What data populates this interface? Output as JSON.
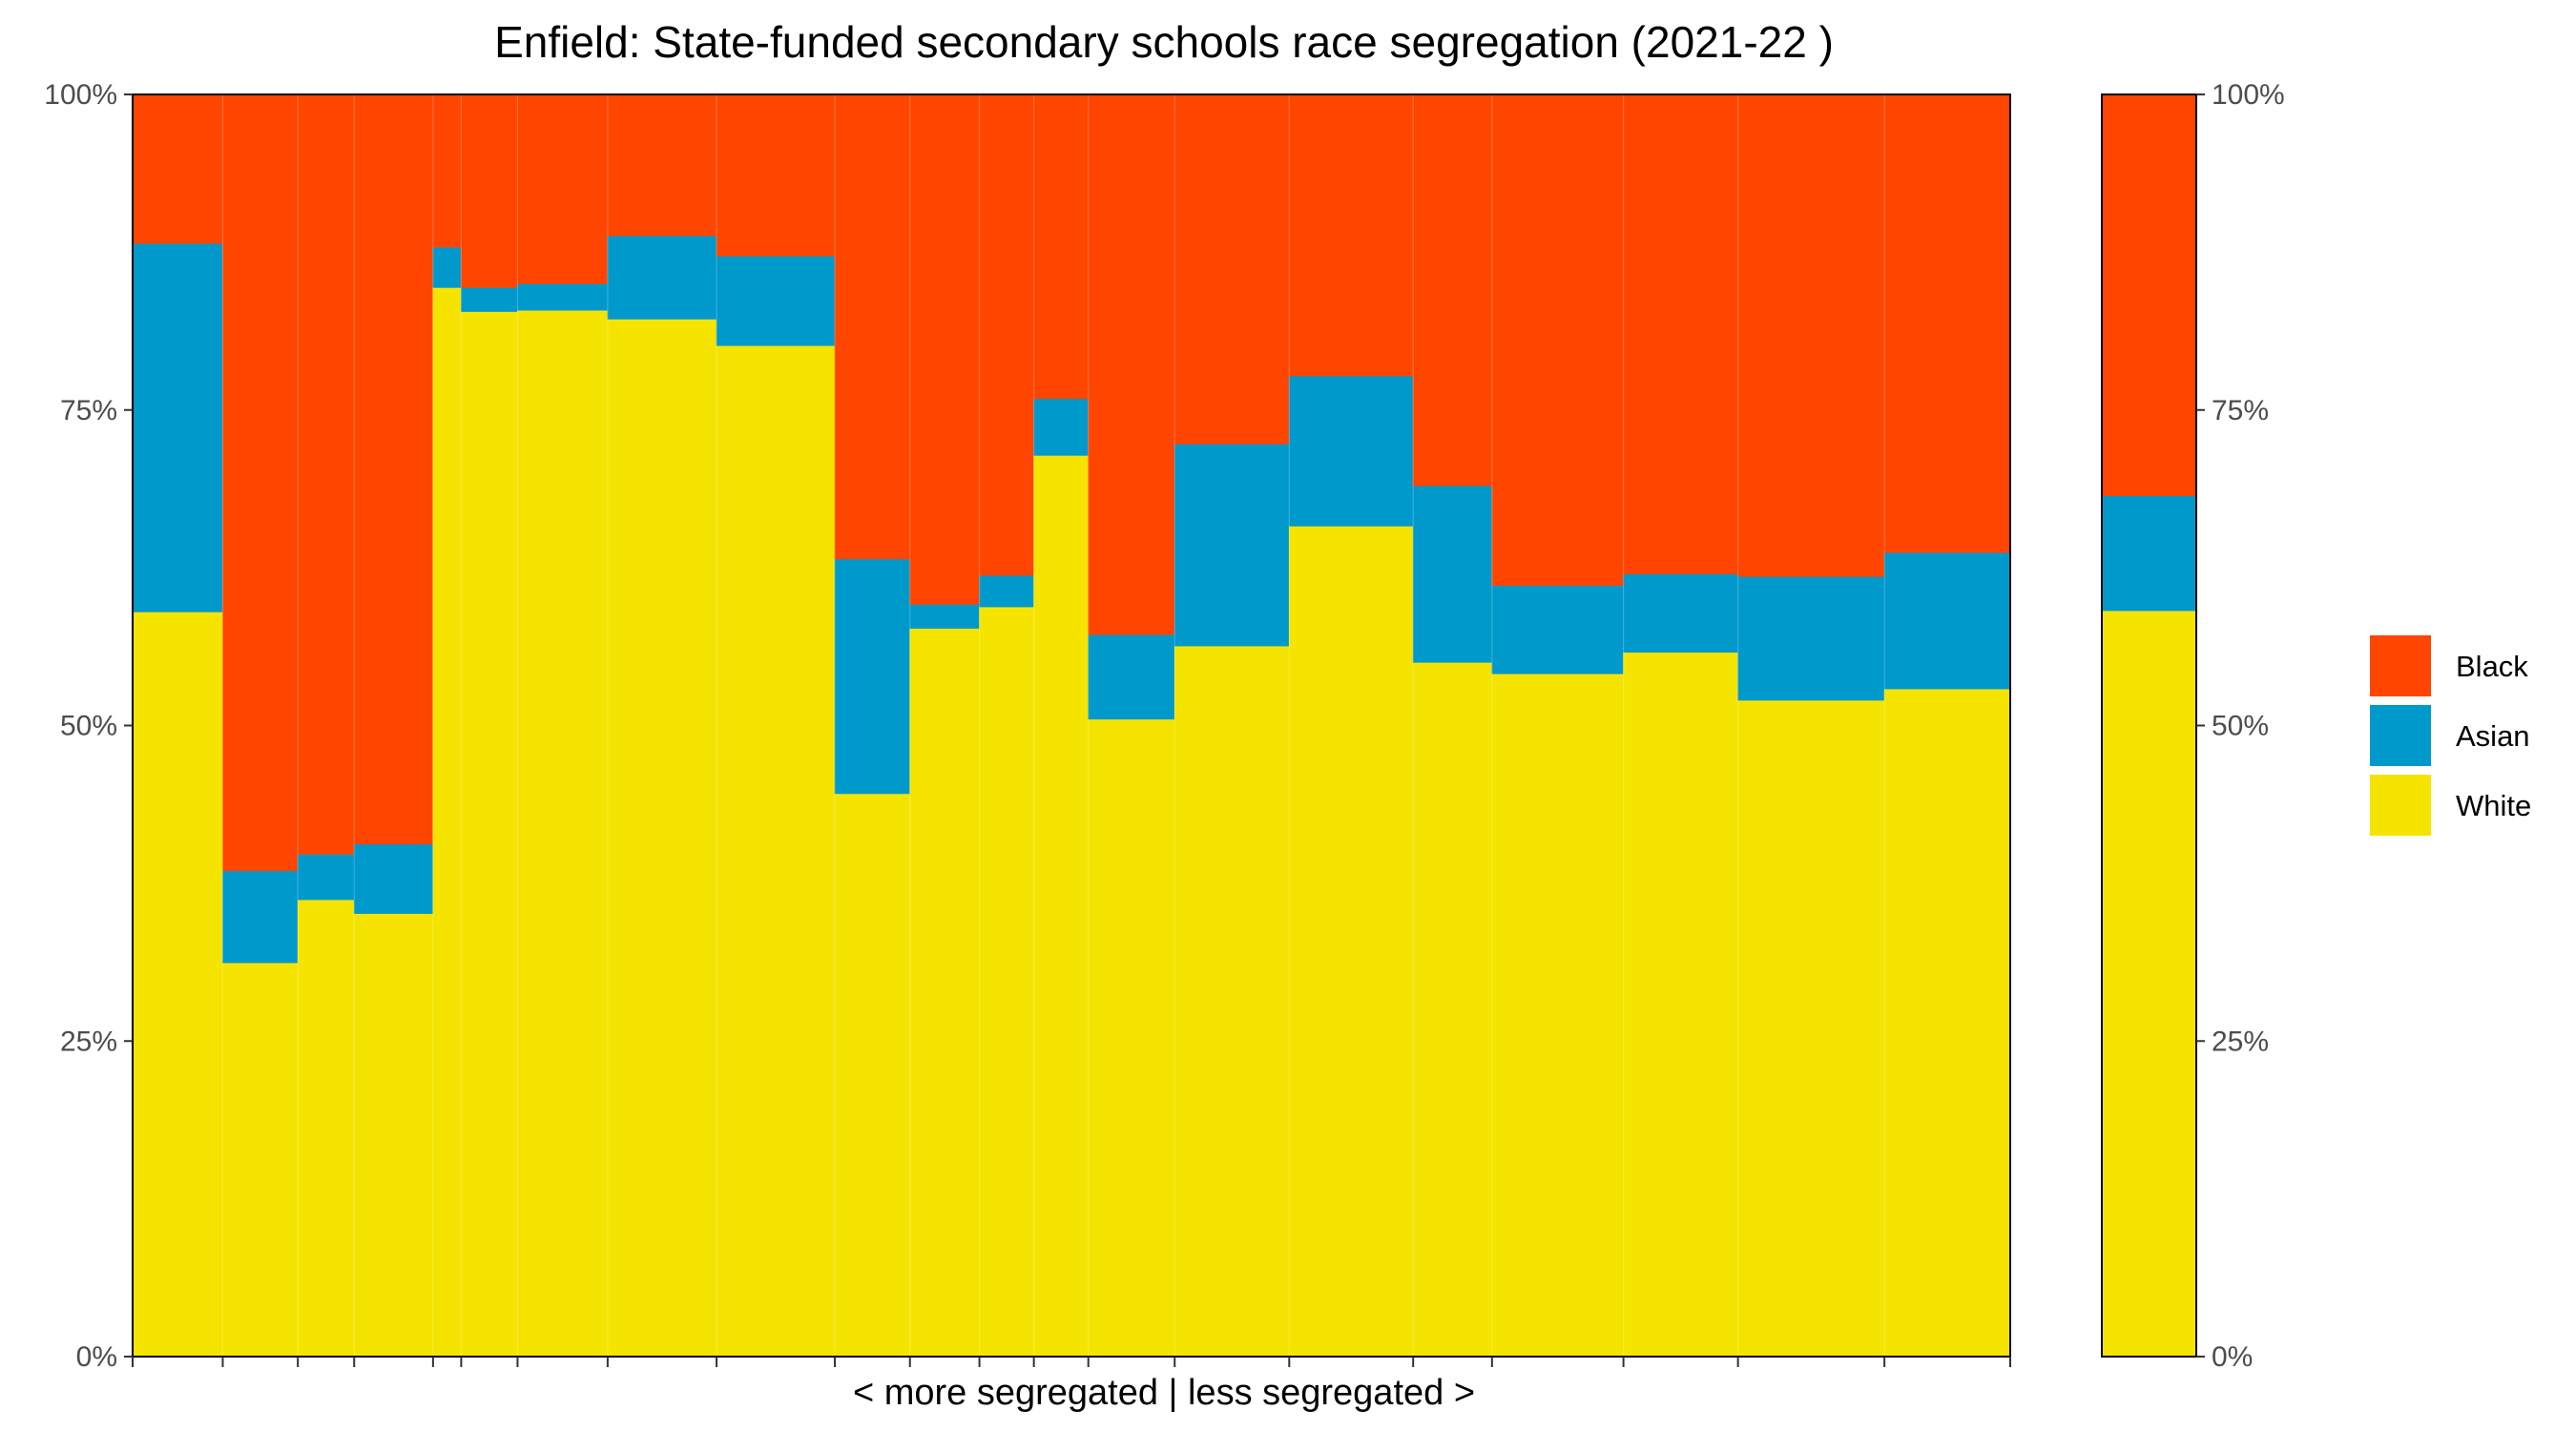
{
  "chart_data": {
    "type": "bar",
    "subtype": "stacked-100-variable-width",
    "title": "Enfield: State-funded secondary schools race segregation (2021-22 )",
    "xlabel": "< more segregated | less segregated >",
    "ylabel": "",
    "ylim": [
      0,
      100
    ],
    "y_ticks": [
      "0%",
      "25%",
      "50%",
      "75%",
      "100%"
    ],
    "grid": false,
    "legend_position": "right",
    "series_order": [
      "White",
      "Asian",
      "Black"
    ],
    "colors": {
      "White": "#f5e400",
      "Asian": "#0099cc",
      "Black": "#ff4500"
    },
    "legend": [
      {
        "name": "Black",
        "color": "#ff4500"
      },
      {
        "name": "Asian",
        "color": "#0099cc"
      },
      {
        "name": "White",
        "color": "#f5e400"
      }
    ],
    "schools": [
      {
        "width": 4.8,
        "white": 59.0,
        "asian": 29.2,
        "black": 11.8
      },
      {
        "width": 4.0,
        "white": 31.2,
        "asian": 7.3,
        "black": 61.5
      },
      {
        "width": 3.0,
        "white": 36.2,
        "asian": 3.6,
        "black": 60.2
      },
      {
        "width": 4.2,
        "white": 35.1,
        "asian": 5.5,
        "black": 59.4
      },
      {
        "width": 1.5,
        "white": 84.7,
        "asian": 3.2,
        "black": 12.1
      },
      {
        "width": 3.0,
        "white": 82.8,
        "asian": 1.9,
        "black": 15.3
      },
      {
        "width": 4.8,
        "white": 82.9,
        "asian": 2.1,
        "black": 15.0
      },
      {
        "width": 5.8,
        "white": 82.2,
        "asian": 6.6,
        "black": 11.2
      },
      {
        "width": 6.3,
        "white": 80.1,
        "asian": 7.1,
        "black": 12.8
      },
      {
        "width": 4.0,
        "white": 44.6,
        "asian": 18.6,
        "black": 36.8
      },
      {
        "width": 3.7,
        "white": 57.7,
        "asian": 1.9,
        "black": 40.4
      },
      {
        "width": 2.9,
        "white": 59.4,
        "asian": 2.5,
        "black": 38.1
      },
      {
        "width": 2.9,
        "white": 71.4,
        "asian": 4.5,
        "black": 24.1
      },
      {
        "width": 4.6,
        "white": 50.5,
        "asian": 6.7,
        "black": 42.8
      },
      {
        "width": 6.1,
        "white": 56.3,
        "asian": 16.0,
        "black": 27.7
      },
      {
        "width": 6.6,
        "white": 65.8,
        "asian": 11.9,
        "black": 22.3
      },
      {
        "width": 4.2,
        "white": 55.0,
        "asian": 14.0,
        "black": 31.0
      },
      {
        "width": 7.0,
        "white": 54.1,
        "asian": 7.0,
        "black": 38.9
      },
      {
        "width": 6.1,
        "white": 55.8,
        "asian": 6.2,
        "black": 38.0
      },
      {
        "width": 7.8,
        "white": 52.0,
        "asian": 9.8,
        "black": 38.2
      },
      {
        "width": 6.7,
        "white": 52.9,
        "asian": 10.8,
        "black": 36.3
      }
    ],
    "overall": {
      "white": 59.1,
      "asian": 9.1,
      "black": 31.8
    }
  }
}
